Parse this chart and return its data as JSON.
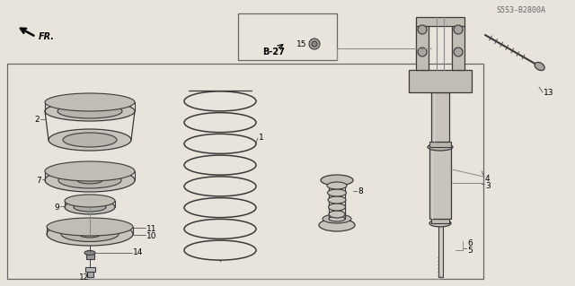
{
  "bg_color": "#e8e4dc",
  "line_color": "#3a3a3a",
  "catalog_code": "S5S3-B2800A",
  "figsize": [
    6.4,
    3.19
  ],
  "dpi": 100
}
